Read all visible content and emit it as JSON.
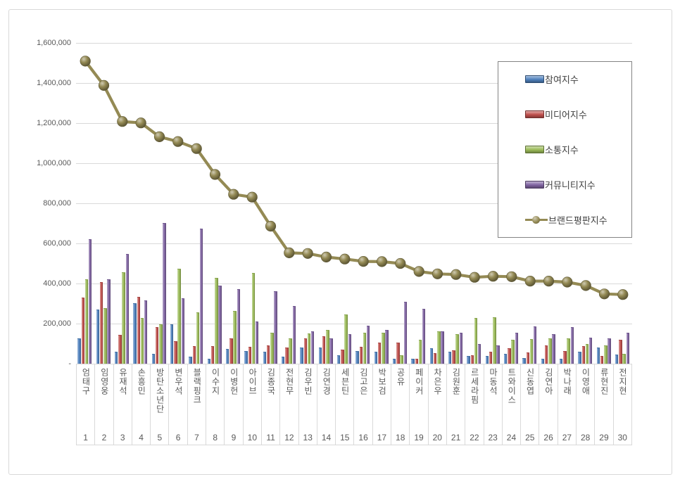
{
  "chart_data": {
    "type": "bar",
    "title": "",
    "xlabel": "",
    "ylabel": "",
    "ylim": [
      0,
      1600000
    ],
    "ytick_interval": 200000,
    "ytick_labels_top_to_bottom": [
      "1,600,000",
      "1,400,000",
      "1,200,000",
      "1,000,000",
      "800,000",
      "600,000",
      "400,000",
      "200,000",
      "-"
    ],
    "grid": true,
    "legend_position": "upper right",
    "categories": [
      "엄태구",
      "임영웅",
      "유재석",
      "손흥민",
      "방탄소년단",
      "변우석",
      "블랙핑크",
      "이수지",
      "이병헌",
      "아이브",
      "김종국",
      "전현무",
      "김우빈",
      "김연경",
      "세븐틴",
      "김고은",
      "박보검",
      "공유",
      "페이커",
      "차은우",
      "김원훈",
      "르세라핌",
      "마동석",
      "트와이스",
      "신동엽",
      "김연아",
      "박나래",
      "이영애",
      "류현진",
      "전지현"
    ],
    "rank_labels": [
      "1",
      "2",
      "3",
      "4",
      "5",
      "6",
      "7",
      "8",
      "9",
      "10",
      "11",
      "12",
      "13",
      "14",
      "15",
      "16",
      "17",
      "18",
      "19",
      "20",
      "21",
      "22",
      "23",
      "24",
      "25",
      "26",
      "27",
      "28",
      "29",
      "30"
    ],
    "series": [
      {
        "name": "참여지수",
        "color": "#4F81BD",
        "values": [
          128000,
          270000,
          61000,
          303000,
          49000,
          196000,
          35000,
          26000,
          72000,
          64000,
          61000,
          35000,
          82000,
          82000,
          43000,
          64000,
          61000,
          23000,
          26000,
          76000,
          58000,
          37000,
          37000,
          49000,
          29000,
          26000,
          23000,
          58000,
          79000,
          47000
        ]
      },
      {
        "name": "미디어지수",
        "color": "#C0504D",
        "values": [
          330000,
          408000,
          143000,
          335000,
          183000,
          111000,
          87000,
          87000,
          126000,
          84000,
          93000,
          82000,
          125000,
          138000,
          70000,
          85000,
          105000,
          105000,
          26000,
          52000,
          68000,
          41000,
          61000,
          76000,
          56000,
          93000,
          64000,
          87000,
          37000,
          119000
        ]
      },
      {
        "name": "소통지수",
        "color": "#9BBB59",
        "values": [
          422000,
          277000,
          455000,
          229000,
          196000,
          472000,
          256000,
          428000,
          262000,
          452000,
          154000,
          128000,
          152000,
          167000,
          245000,
          155000,
          155000,
          41000,
          119000,
          160000,
          149000,
          227000,
          230000,
          119000,
          122000,
          126000,
          126000,
          99000,
          91000,
          49000
        ]
      },
      {
        "name": "커뮤니티지수",
        "color": "#8064A2",
        "values": [
          620000,
          420000,
          548000,
          317000,
          702000,
          325000,
          674000,
          390000,
          372000,
          212000,
          361000,
          288000,
          163000,
          125000,
          146000,
          190000,
          167000,
          309000,
          274000,
          160000,
          155000,
          97000,
          93000,
          154000,
          187000,
          146000,
          184000,
          131000,
          126000,
          154000
        ]
      }
    ],
    "line_series": {
      "name": "브랜드평판지수",
      "color": "#948A54",
      "values": [
        1509000,
        1388000,
        1208000,
        1201000,
        1132000,
        1108000,
        1073000,
        944000,
        845000,
        831000,
        686000,
        553000,
        550000,
        532000,
        522000,
        510000,
        509000,
        500000,
        460000,
        448000,
        445000,
        431000,
        436000,
        434000,
        412000,
        412000,
        407000,
        390000,
        348000,
        345000
      ]
    }
  },
  "style_colors": {
    "grid": "#D9D9D9",
    "axis_text": "#595959",
    "legend_border": "#848484",
    "legend_text": "#404040",
    "background": "#FFFFFF"
  }
}
